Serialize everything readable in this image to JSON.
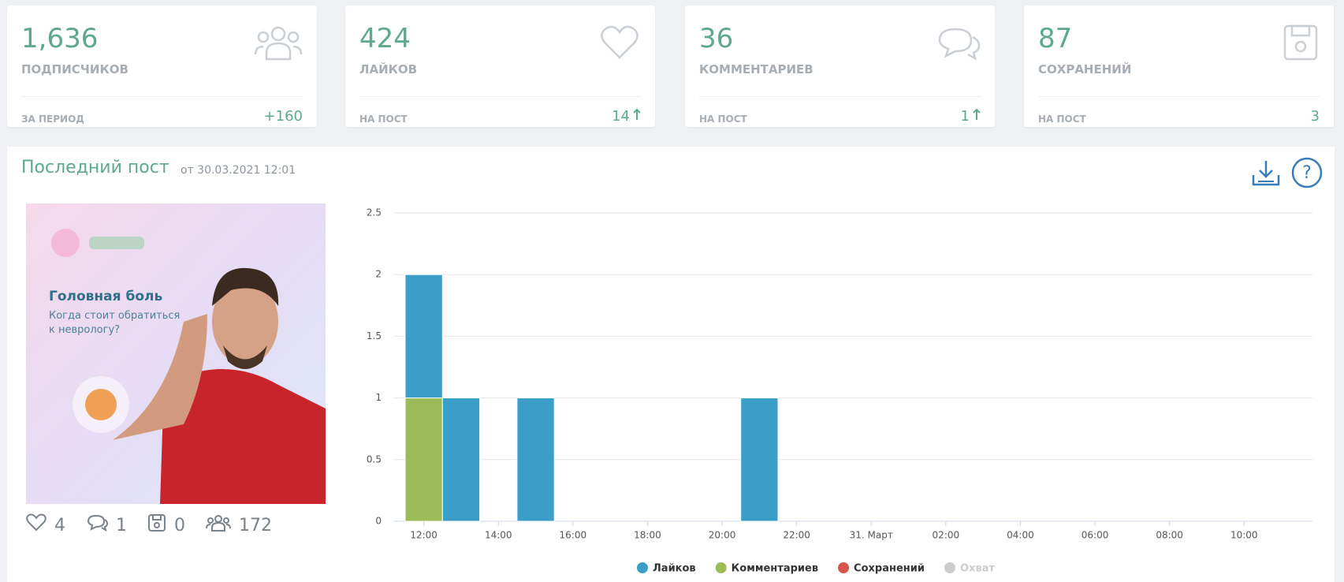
{
  "cards": [
    {
      "value": "1,636",
      "label": "ПОДПИСЧИКОВ",
      "foot_label": "ЗА ПЕРИОД",
      "foot_value": "+160"
    },
    {
      "value": "424",
      "label": "ЛАЙКОВ",
      "foot_label": "НА ПОСТ",
      "foot_value": "14"
    },
    {
      "value": "36",
      "label": "КОММЕНТАРИЕВ",
      "foot_label": "НА ПОСТ",
      "foot_value": "1"
    },
    {
      "value": "87",
      "label": "СОХРАНЕНИЙ",
      "foot_label": "НА ПОСТ",
      "foot_value": "3"
    }
  ],
  "post": {
    "title": "Последний пост",
    "date": "от 30.03.2021 12:01",
    "image_title": "Головная боль",
    "image_text": "Когда стоит обратиться к неврологу?",
    "stats": [
      "4",
      "1",
      "0",
      "172"
    ]
  },
  "chart_data": {
    "type": "bar",
    "stacked": true,
    "categories": [
      "12:00",
      null,
      "14:00",
      null,
      "16:00",
      null,
      "18:00",
      null,
      "20:00",
      null,
      "22:00",
      null,
      "31. Март",
      null,
      "02:00",
      null,
      "04:00",
      null,
      "06:00",
      null,
      "08:00",
      null,
      "10:00",
      null
    ],
    "series": [
      {
        "name": "Лайков",
        "color": "#3a9ec9",
        "values": [
          1,
          1,
          0,
          1,
          0,
          0,
          0,
          0,
          0,
          1,
          0,
          0,
          0,
          0,
          0,
          0,
          0,
          0,
          0,
          0,
          0,
          0,
          0,
          0
        ]
      },
      {
        "name": "Комментариев",
        "color": "#9bbb59",
        "values": [
          1,
          0,
          0,
          0,
          0,
          0,
          0,
          0,
          0,
          0,
          0,
          0,
          0,
          0,
          0,
          0,
          0,
          0,
          0,
          0,
          0,
          0,
          0,
          0
        ]
      },
      {
        "name": "Сохранений",
        "color": "#d9534f",
        "values": [
          0,
          0,
          0,
          0,
          0,
          0,
          0,
          0,
          0,
          0,
          0,
          0,
          0,
          0,
          0,
          0,
          0,
          0,
          0,
          0,
          0,
          0,
          0,
          0
        ]
      },
      {
        "name": "Охват",
        "color": "#cccccc",
        "visible": false
      }
    ],
    "ylim": [
      0,
      2.5
    ],
    "yticks": [
      0,
      0.5,
      1,
      1.5,
      2,
      2.5
    ],
    "grid": true
  }
}
